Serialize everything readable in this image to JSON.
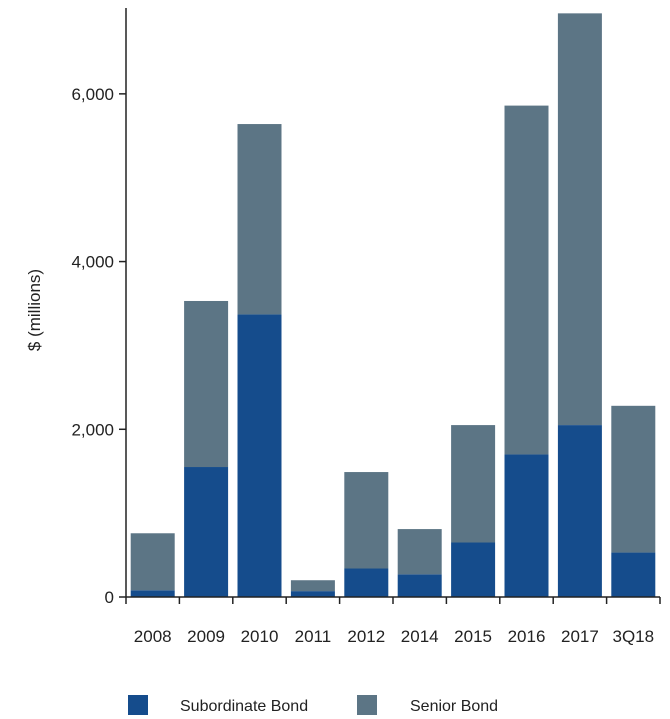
{
  "chart_data": {
    "type": "bar",
    "stacked": true,
    "categories": [
      "2008",
      "2009",
      "2010",
      "2011",
      "2012",
      "2014",
      "2015",
      "2016",
      "2017",
      "3Q18"
    ],
    "series": [
      {
        "name": "Subordinate Bond",
        "color": "#154c8c",
        "values": [
          80,
          1550,
          3370,
          70,
          340,
          270,
          650,
          1700,
          2050,
          530
        ]
      },
      {
        "name": "Senior Bond",
        "color": "#5c7585",
        "values": [
          680,
          1980,
          2270,
          130,
          1150,
          540,
          1400,
          4160,
          4910,
          1750
        ]
      }
    ],
    "title": "",
    "xlabel": "",
    "ylabel": "$ (millions)",
    "ylim": [
      0,
      7000
    ],
    "yticks": [
      0,
      2000,
      4000,
      6000
    ],
    "ytick_labels": [
      "0",
      "2,000",
      "4,000",
      "6,000"
    ],
    "grid": false,
    "legend_position": "bottom"
  }
}
